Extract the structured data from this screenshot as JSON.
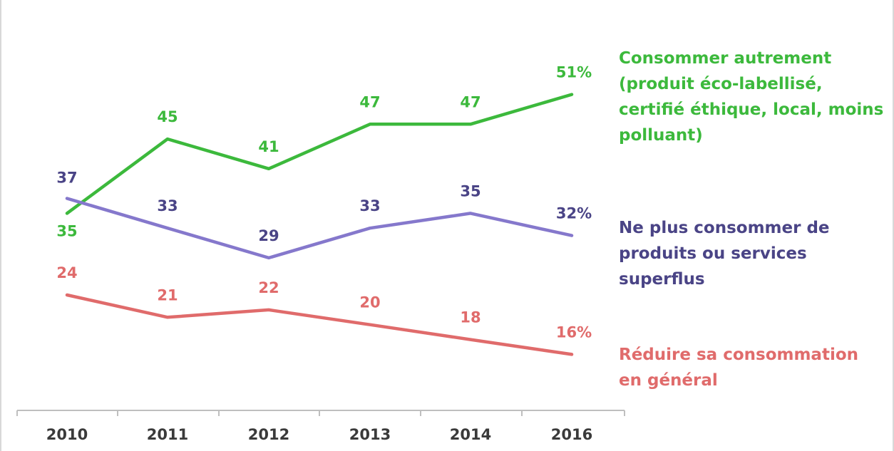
{
  "chart_data": {
    "type": "line",
    "title": "",
    "xlabel": "",
    "ylabel": "",
    "categories": [
      "2010",
      "2011",
      "2012",
      "2013",
      "2014",
      "2016"
    ],
    "series": [
      {
        "name": "Consommer autrement\n(produit éco-labellisé,\ncertifié éthique, local, moins\npolluant)",
        "color": "#3cb93c",
        "values": [
          35,
          45,
          41,
          47,
          47,
          51
        ],
        "labels": [
          "35",
          "45",
          "41",
          "47",
          "47",
          "51%"
        ]
      },
      {
        "name": "Ne plus consommer de\nproduits ou services superflus",
        "color": "#8578cc",
        "values": [
          37,
          33,
          29,
          33,
          35,
          32
        ],
        "labels": [
          "37",
          "33",
          "29",
          "33",
          "35",
          "32%"
        ]
      },
      {
        "name": "Réduire sa consommation\nen général",
        "color": "#e06b6b",
        "values": [
          24,
          21,
          22,
          20,
          18,
          16
        ],
        "labels": [
          "24",
          "21",
          "22",
          "20",
          "18",
          "16%"
        ]
      }
    ],
    "ylim": [
      10,
      57
    ],
    "grid": false,
    "legend": "right"
  },
  "colors": {
    "axis": "#bfbfbf",
    "tick_label": "#3a3a3a",
    "value_label_green": "#3cb93c",
    "value_label_purple": "#4a4486",
    "value_label_red": "#e06b6b",
    "legend_green": "#3cb93c",
    "legend_purple": "#4a4486",
    "legend_red": "#e06b6b"
  }
}
